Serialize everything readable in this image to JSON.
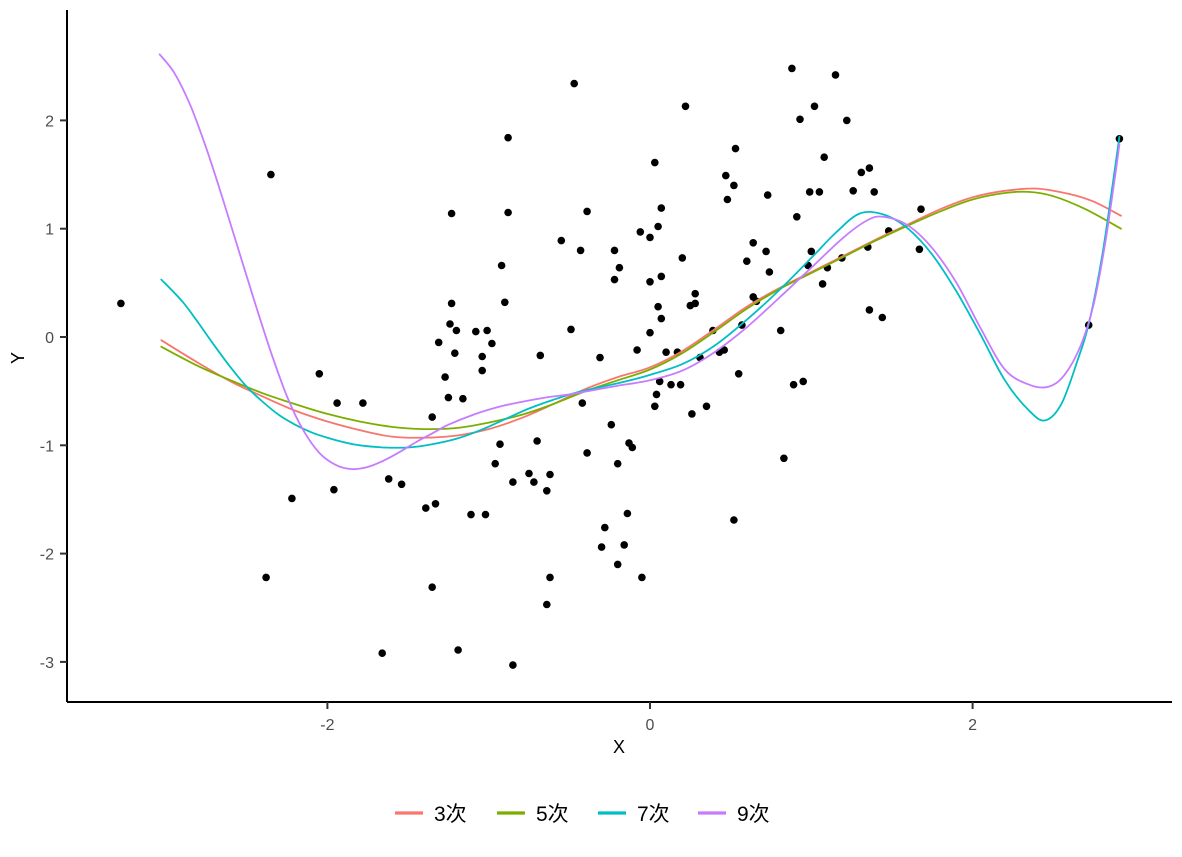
{
  "chart_data": {
    "type": "scatter",
    "title": "",
    "xlabel": "X",
    "ylabel": "Y",
    "x_ticks": [
      -2,
      0,
      2
    ],
    "y_ticks": [
      -3,
      -2,
      -1,
      0,
      1,
      2
    ],
    "xlim": [
      -3.6,
      3.25
    ],
    "ylim": [
      -3.35,
      3.0
    ],
    "grid": "off",
    "background": "#ffffff",
    "axis_color": "#000000",
    "tick_label_color": "#4d4d4d",
    "point_color": "#000000",
    "legend": {
      "position": "bottom",
      "items": [
        {
          "label": "3次",
          "color": "#F8766D"
        },
        {
          "label": "5次",
          "color": "#7CAE00"
        },
        {
          "label": "7次",
          "color": "#00BFC4"
        },
        {
          "label": "9次",
          "color": "#C77CFF"
        }
      ]
    },
    "points": [
      [
        -3.28,
        0.31
      ],
      [
        -2.35,
        1.5
      ],
      [
        -2.05,
        -0.34
      ],
      [
        -1.94,
        -0.61
      ],
      [
        -1.78,
        -0.61
      ],
      [
        -2.22,
        -1.49
      ],
      [
        -1.96,
        -1.41
      ],
      [
        -1.62,
        -1.31
      ],
      [
        -1.54,
        -1.36
      ],
      [
        -1.39,
        -1.58
      ],
      [
        -1.33,
        -1.54
      ],
      [
        -2.38,
        -2.22
      ],
      [
        -1.35,
        -2.31
      ],
      [
        -1.66,
        -2.92
      ],
      [
        -1.31,
        -0.05
      ],
      [
        -1.27,
        -0.37
      ],
      [
        -1.25,
        -0.56
      ],
      [
        -1.16,
        -0.57
      ],
      [
        -1.35,
        -0.74
      ],
      [
        -1.23,
        0.31
      ],
      [
        -1.24,
        0.12
      ],
      [
        -1.2,
        0.06
      ],
      [
        -1.08,
        0.05
      ],
      [
        -1.01,
        0.06
      ],
      [
        -0.98,
        -0.06
      ],
      [
        -1.21,
        -0.15
      ],
      [
        -1.04,
        -0.18
      ],
      [
        -1.04,
        -0.31
      ],
      [
        -0.92,
        0.66
      ],
      [
        -0.9,
        0.32
      ],
      [
        -0.68,
        -0.17
      ],
      [
        -0.49,
        0.07
      ],
      [
        -0.42,
        -0.61
      ],
      [
        -0.31,
        -0.19
      ],
      [
        -0.24,
        -0.81
      ],
      [
        -0.19,
        0.64
      ],
      [
        -0.22,
        0.53
      ],
      [
        0.0,
        0.51
      ],
      [
        0.07,
        0.56
      ],
      [
        0.05,
        0.28
      ],
      [
        0.0,
        0.04
      ],
      [
        0.07,
        0.17
      ],
      [
        -0.08,
        -0.12
      ],
      [
        0.1,
        -0.14
      ],
      [
        0.17,
        -0.14
      ],
      [
        0.06,
        -0.41
      ],
      [
        0.13,
        -0.44
      ],
      [
        0.19,
        -0.44
      ],
      [
        0.03,
        -0.64
      ],
      [
        0.04,
        -0.53
      ],
      [
        0.28,
        0.4
      ],
      [
        0.25,
        0.29
      ],
      [
        0.28,
        0.31
      ],
      [
        0.31,
        -0.19
      ],
      [
        0.39,
        0.06
      ],
      [
        0.43,
        -0.14
      ],
      [
        0.46,
        -0.12
      ],
      [
        0.26,
        -0.71
      ],
      [
        0.35,
        -0.64
      ],
      [
        0.55,
        -0.34
      ],
      [
        0.57,
        0.11
      ],
      [
        0.64,
        0.37
      ],
      [
        0.66,
        0.33
      ],
      [
        0.74,
        0.6
      ],
      [
        0.81,
        0.06
      ],
      [
        0.89,
        -0.44
      ],
      [
        0.95,
        -0.41
      ],
      [
        0.83,
        -1.12
      ],
      [
        -0.13,
        -0.98
      ],
      [
        -0.11,
        -1.02
      ],
      [
        -0.7,
        -0.96
      ],
      [
        -0.93,
        -0.99
      ],
      [
        -0.96,
        -1.17
      ],
      [
        -0.85,
        -1.34
      ],
      [
        -0.75,
        -1.26
      ],
      [
        -0.72,
        -1.34
      ],
      [
        -0.62,
        -1.27
      ],
      [
        -0.64,
        -1.42
      ],
      [
        -0.39,
        -1.07
      ],
      [
        -0.2,
        -1.17
      ],
      [
        -0.47,
        2.34
      ],
      [
        0.88,
        2.48
      ],
      [
        0.22,
        2.13
      ],
      [
        -0.88,
        1.84
      ],
      [
        0.53,
        1.74
      ],
      [
        0.03,
        1.61
      ],
      [
        0.47,
        1.49
      ],
      [
        0.52,
        1.4
      ],
      [
        0.48,
        1.27
      ],
      [
        0.73,
        1.31
      ],
      [
        0.99,
        1.34
      ],
      [
        1.05,
        1.34
      ],
      [
        0.91,
        1.11
      ],
      [
        -1.23,
        1.14
      ],
      [
        -0.88,
        1.15
      ],
      [
        -0.39,
        1.16
      ],
      [
        0.07,
        1.19
      ],
      [
        0.05,
        1.02
      ],
      [
        -0.06,
        0.97
      ],
      [
        0.0,
        0.92
      ],
      [
        -0.55,
        0.89
      ],
      [
        -0.43,
        0.8
      ],
      [
        -0.22,
        0.8
      ],
      [
        0.2,
        0.73
      ],
      [
        0.64,
        0.87
      ],
      [
        0.72,
        0.79
      ],
      [
        0.6,
        0.7
      ],
      [
        1.15,
        2.42
      ],
      [
        1.02,
        2.13
      ],
      [
        1.22,
        2.0
      ],
      [
        0.93,
        2.01
      ],
      [
        1.08,
        1.66
      ],
      [
        1.31,
        1.52
      ],
      [
        1.36,
        1.56
      ],
      [
        1.26,
        1.35
      ],
      [
        1.39,
        1.34
      ],
      [
        2.91,
        1.83
      ],
      [
        1.68,
        1.18
      ],
      [
        1.48,
        0.98
      ],
      [
        1.35,
        0.83
      ],
      [
        1.67,
        0.81
      ],
      [
        1.0,
        0.79
      ],
      [
        1.19,
        0.73
      ],
      [
        0.98,
        0.66
      ],
      [
        1.1,
        0.64
      ],
      [
        1.07,
        0.49
      ],
      [
        1.36,
        0.25
      ],
      [
        1.44,
        0.18
      ],
      [
        2.72,
        0.11
      ],
      [
        -1.11,
        -1.64
      ],
      [
        -1.02,
        -1.64
      ],
      [
        -0.14,
        -1.63
      ],
      [
        0.52,
        -1.69
      ],
      [
        -0.28,
        -1.76
      ],
      [
        -0.3,
        -1.94
      ],
      [
        -0.16,
        -1.92
      ],
      [
        -0.2,
        -2.1
      ],
      [
        -0.62,
        -2.22
      ],
      [
        -0.05,
        -2.22
      ],
      [
        -0.64,
        -2.47
      ],
      [
        -1.19,
        -2.89
      ],
      [
        -0.85,
        -3.03
      ]
    ],
    "series": [
      {
        "name": "3次",
        "color": "#F8766D",
        "points": [
          [
            -3.03,
            -0.03
          ],
          [
            -2.8,
            -0.24
          ],
          [
            -2.6,
            -0.41
          ],
          [
            -2.4,
            -0.55
          ],
          [
            -2.2,
            -0.68
          ],
          [
            -2.0,
            -0.78
          ],
          [
            -1.8,
            -0.86
          ],
          [
            -1.6,
            -0.92
          ],
          [
            -1.4,
            -0.93
          ],
          [
            -1.2,
            -0.91
          ],
          [
            -1.0,
            -0.85
          ],
          [
            -0.8,
            -0.75
          ],
          [
            -0.6,
            -0.62
          ],
          [
            -0.4,
            -0.48
          ],
          [
            -0.2,
            -0.37
          ],
          [
            0,
            -0.28
          ],
          [
            0.2,
            -0.13
          ],
          [
            0.4,
            0.07
          ],
          [
            0.6,
            0.28
          ],
          [
            0.8,
            0.45
          ],
          [
            1.0,
            0.6
          ],
          [
            1.2,
            0.75
          ],
          [
            1.4,
            0.9
          ],
          [
            1.6,
            1.04
          ],
          [
            1.8,
            1.18
          ],
          [
            2.0,
            1.29
          ],
          [
            2.2,
            1.35
          ],
          [
            2.4,
            1.37
          ],
          [
            2.6,
            1.32
          ],
          [
            2.75,
            1.25
          ],
          [
            2.92,
            1.12
          ]
        ]
      },
      {
        "name": "5次",
        "color": "#7CAE00",
        "points": [
          [
            -3.03,
            -0.09
          ],
          [
            -2.8,
            -0.27
          ],
          [
            -2.6,
            -0.4
          ],
          [
            -2.4,
            -0.52
          ],
          [
            -2.2,
            -0.62
          ],
          [
            -2.0,
            -0.71
          ],
          [
            -1.8,
            -0.78
          ],
          [
            -1.6,
            -0.83
          ],
          [
            -1.4,
            -0.85
          ],
          [
            -1.2,
            -0.84
          ],
          [
            -1.0,
            -0.79
          ],
          [
            -0.8,
            -0.72
          ],
          [
            -0.6,
            -0.62
          ],
          [
            -0.4,
            -0.5
          ],
          [
            -0.2,
            -0.4
          ],
          [
            0,
            -0.3
          ],
          [
            0.2,
            -0.15
          ],
          [
            0.4,
            0.05
          ],
          [
            0.6,
            0.26
          ],
          [
            0.8,
            0.44
          ],
          [
            1.0,
            0.59
          ],
          [
            1.2,
            0.74
          ],
          [
            1.4,
            0.89
          ],
          [
            1.6,
            1.03
          ],
          [
            1.8,
            1.16
          ],
          [
            2.0,
            1.27
          ],
          [
            2.2,
            1.33
          ],
          [
            2.35,
            1.34
          ],
          [
            2.5,
            1.3
          ],
          [
            2.7,
            1.18
          ],
          [
            2.92,
            1.0
          ]
        ]
      },
      {
        "name": "7次",
        "color": "#00BFC4",
        "points": [
          [
            -3.03,
            0.53
          ],
          [
            -2.9,
            0.33
          ],
          [
            -2.8,
            0.13
          ],
          [
            -2.7,
            -0.08
          ],
          [
            -2.6,
            -0.28
          ],
          [
            -2.5,
            -0.46
          ],
          [
            -2.4,
            -0.6
          ],
          [
            -2.3,
            -0.72
          ],
          [
            -2.2,
            -0.81
          ],
          [
            -2.1,
            -0.88
          ],
          [
            -2.0,
            -0.93
          ],
          [
            -1.9,
            -0.97
          ],
          [
            -1.8,
            -1.0
          ],
          [
            -1.65,
            -1.02
          ],
          [
            -1.5,
            -1.02
          ],
          [
            -1.35,
            -0.99
          ],
          [
            -1.2,
            -0.94
          ],
          [
            -1.05,
            -0.86
          ],
          [
            -0.9,
            -0.76
          ],
          [
            -0.75,
            -0.66
          ],
          [
            -0.6,
            -0.58
          ],
          [
            -0.45,
            -0.51
          ],
          [
            -0.3,
            -0.46
          ],
          [
            -0.15,
            -0.41
          ],
          [
            0,
            -0.35
          ],
          [
            0.2,
            -0.25
          ],
          [
            0.4,
            -0.08
          ],
          [
            0.6,
            0.16
          ],
          [
            0.8,
            0.43
          ],
          [
            1.0,
            0.73
          ],
          [
            1.15,
            0.96
          ],
          [
            1.3,
            1.14
          ],
          [
            1.45,
            1.13
          ],
          [
            1.6,
            1.0
          ],
          [
            1.75,
            0.76
          ],
          [
            1.9,
            0.42
          ],
          [
            2.05,
            0.02
          ],
          [
            2.2,
            -0.4
          ],
          [
            2.35,
            -0.68
          ],
          [
            2.45,
            -0.77
          ],
          [
            2.55,
            -0.62
          ],
          [
            2.65,
            -0.22
          ],
          [
            2.72,
            0.12
          ],
          [
            2.8,
            0.72
          ],
          [
            2.86,
            1.32
          ],
          [
            2.91,
            1.85
          ]
        ]
      },
      {
        "name": "9次",
        "color": "#C77CFF",
        "points": [
          [
            -3.04,
            2.61
          ],
          [
            -2.95,
            2.44
          ],
          [
            -2.85,
            2.14
          ],
          [
            -2.75,
            1.74
          ],
          [
            -2.65,
            1.28
          ],
          [
            -2.55,
            0.8
          ],
          [
            -2.45,
            0.32
          ],
          [
            -2.35,
            -0.14
          ],
          [
            -2.25,
            -0.55
          ],
          [
            -2.15,
            -0.86
          ],
          [
            -2.05,
            -1.07
          ],
          [
            -1.95,
            -1.18
          ],
          [
            -1.85,
            -1.22
          ],
          [
            -1.75,
            -1.2
          ],
          [
            -1.65,
            -1.14
          ],
          [
            -1.55,
            -1.06
          ],
          [
            -1.45,
            -0.97
          ],
          [
            -1.35,
            -0.89
          ],
          [
            -1.25,
            -0.81
          ],
          [
            -1.1,
            -0.72
          ],
          [
            -0.95,
            -0.65
          ],
          [
            -0.8,
            -0.6
          ],
          [
            -0.65,
            -0.56
          ],
          [
            -0.5,
            -0.53
          ],
          [
            -0.35,
            -0.49
          ],
          [
            -0.2,
            -0.45
          ],
          [
            0,
            -0.4
          ],
          [
            0.2,
            -0.31
          ],
          [
            0.4,
            -0.14
          ],
          [
            0.6,
            0.09
          ],
          [
            0.8,
            0.36
          ],
          [
            1.0,
            0.64
          ],
          [
            1.2,
            0.92
          ],
          [
            1.35,
            1.08
          ],
          [
            1.45,
            1.11
          ],
          [
            1.6,
            1.03
          ],
          [
            1.75,
            0.82
          ],
          [
            1.9,
            0.5
          ],
          [
            2.05,
            0.08
          ],
          [
            2.2,
            -0.3
          ],
          [
            2.35,
            -0.44
          ],
          [
            2.47,
            -0.46
          ],
          [
            2.57,
            -0.35
          ],
          [
            2.67,
            -0.08
          ],
          [
            2.75,
            0.3
          ],
          [
            2.82,
            0.85
          ],
          [
            2.88,
            1.45
          ],
          [
            2.91,
            1.78
          ]
        ]
      }
    ]
  }
}
